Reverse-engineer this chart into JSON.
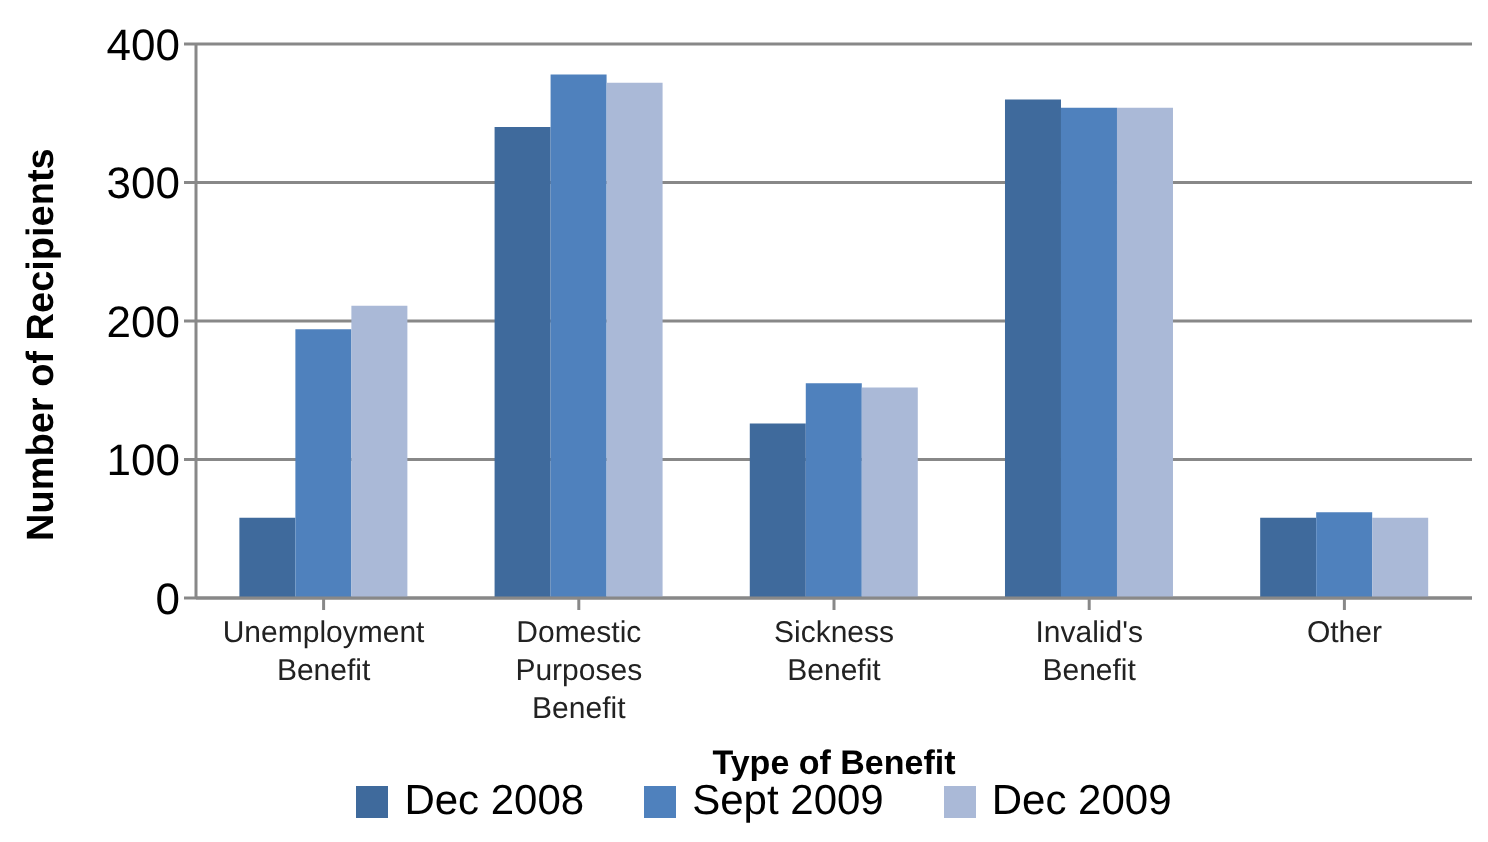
{
  "chart_data": {
    "type": "bar",
    "xlabel": "Type of Benefit",
    "ylabel": "Number of Recipients",
    "categories": [
      "Unemployment Benefit",
      "Domestic Purposes Benefit",
      "Sickness Benefit",
      "Invalid's Benefit",
      "Other"
    ],
    "series": [
      {
        "name": "Dec 2008",
        "color": "#3f6a9c",
        "values": [
          58,
          340,
          126,
          360,
          58
        ]
      },
      {
        "name": "Sept 2009",
        "color": "#4f81bd",
        "values": [
          194,
          378,
          155,
          354,
          62
        ]
      },
      {
        "name": "Dec 2009",
        "color": "#aab9d7",
        "values": [
          211,
          372,
          152,
          354,
          58
        ]
      }
    ],
    "ylim": [
      0,
      400
    ],
    "yticks": [
      0,
      100,
      200,
      300,
      400
    ],
    "grid": "y",
    "legend": "bottom"
  }
}
